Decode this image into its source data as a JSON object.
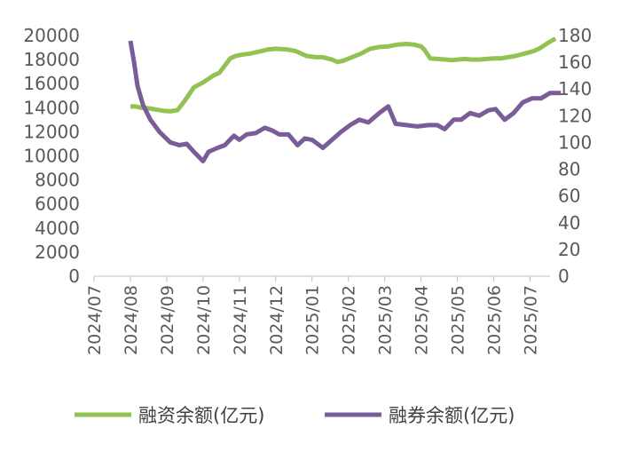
{
  "chart_data": {
    "type": "line",
    "title": "",
    "xlabel": "",
    "ylabel_left": "",
    "ylabel_right": "",
    "y_left": {
      "min": 0,
      "max": 20000,
      "step": 2000,
      "ticks": [
        "0",
        "2000",
        "4000",
        "6000",
        "8000",
        "10000",
        "12000",
        "14000",
        "16000",
        "18000",
        "20000"
      ]
    },
    "y_right": {
      "min": 0,
      "max": 180,
      "step": 20,
      "ticks": [
        "0",
        "20",
        "40",
        "60",
        "80",
        "100",
        "120",
        "140",
        "160",
        "180"
      ]
    },
    "x_ticks": [
      "2024/07",
      "2024/08",
      "2024/09",
      "2024/10",
      "2024/11",
      "2024/12",
      "2025/01",
      "2025/02",
      "2025/03",
      "2025/04",
      "2025/05",
      "2025/06",
      "2025/07"
    ],
    "grid": false,
    "legend_position": "bottom",
    "series": [
      {
        "name": "融资余额(亿元)",
        "axis": "left",
        "color": "#92c352",
        "points": [
          [
            1.0,
            14100
          ],
          [
            1.15,
            14100
          ],
          [
            1.3,
            14000
          ],
          [
            1.5,
            13950
          ],
          [
            1.7,
            13850
          ],
          [
            1.9,
            13750
          ],
          [
            2.1,
            13700
          ],
          [
            2.3,
            13800
          ],
          [
            2.5,
            14600
          ],
          [
            2.75,
            15700
          ],
          [
            3.0,
            16100
          ],
          [
            3.3,
            16700
          ],
          [
            3.45,
            16900
          ],
          [
            3.6,
            17500
          ],
          [
            3.75,
            18100
          ],
          [
            3.9,
            18300
          ],
          [
            4.05,
            18400
          ],
          [
            4.3,
            18500
          ],
          [
            4.6,
            18700
          ],
          [
            4.8,
            18850
          ],
          [
            5.0,
            18900
          ],
          [
            5.3,
            18850
          ],
          [
            5.55,
            18700
          ],
          [
            5.85,
            18300
          ],
          [
            6.1,
            18200
          ],
          [
            6.3,
            18200
          ],
          [
            6.55,
            18000
          ],
          [
            6.7,
            17800
          ],
          [
            6.85,
            17900
          ],
          [
            7.1,
            18200
          ],
          [
            7.35,
            18500
          ],
          [
            7.6,
            18900
          ],
          [
            7.85,
            19050
          ],
          [
            8.1,
            19100
          ],
          [
            8.35,
            19250
          ],
          [
            8.6,
            19300
          ],
          [
            8.8,
            19250
          ],
          [
            9.0,
            19100
          ],
          [
            9.1,
            18800
          ],
          [
            9.25,
            18100
          ],
          [
            9.45,
            18050
          ],
          [
            9.7,
            18000
          ],
          [
            9.85,
            17950
          ],
          [
            10.0,
            18000
          ],
          [
            10.2,
            18050
          ],
          [
            10.4,
            18000
          ],
          [
            10.6,
            18000
          ],
          [
            10.8,
            18050
          ],
          [
            11.0,
            18100
          ],
          [
            11.2,
            18100
          ],
          [
            11.4,
            18200
          ],
          [
            11.6,
            18300
          ],
          [
            11.85,
            18500
          ],
          [
            12.1,
            18700
          ],
          [
            12.3,
            19000
          ],
          [
            12.5,
            19400
          ],
          [
            12.7,
            19750
          ]
        ]
      },
      {
        "name": "融券余额(亿元)",
        "axis": "right",
        "color": "#7a5c99",
        "points": [
          [
            1.0,
            176
          ],
          [
            1.1,
            160
          ],
          [
            1.2,
            142
          ],
          [
            1.35,
            128
          ],
          [
            1.55,
            117
          ],
          [
            1.8,
            108
          ],
          [
            2.1,
            100
          ],
          [
            2.35,
            98
          ],
          [
            2.55,
            99
          ],
          [
            2.75,
            93
          ],
          [
            3.0,
            86
          ],
          [
            3.15,
            93
          ],
          [
            3.4,
            96
          ],
          [
            3.6,
            98
          ],
          [
            3.85,
            105
          ],
          [
            4.0,
            102
          ],
          [
            4.2,
            106
          ],
          [
            4.45,
            107
          ],
          [
            4.7,
            111
          ],
          [
            4.9,
            109
          ],
          [
            5.1,
            106
          ],
          [
            5.35,
            106
          ],
          [
            5.6,
            98
          ],
          [
            5.8,
            103
          ],
          [
            6.0,
            102
          ],
          [
            6.3,
            96
          ],
          [
            6.55,
            102
          ],
          [
            6.8,
            108
          ],
          [
            7.05,
            113
          ],
          [
            7.3,
            117
          ],
          [
            7.55,
            115
          ],
          [
            7.85,
            122
          ],
          [
            8.1,
            127
          ],
          [
            8.3,
            114
          ],
          [
            8.6,
            113
          ],
          [
            8.9,
            112
          ],
          [
            9.2,
            113
          ],
          [
            9.45,
            113
          ],
          [
            9.65,
            110
          ],
          [
            9.9,
            117
          ],
          [
            10.1,
            117
          ],
          [
            10.35,
            122
          ],
          [
            10.6,
            120
          ],
          [
            10.85,
            124
          ],
          [
            11.05,
            125
          ],
          [
            11.3,
            117
          ],
          [
            11.55,
            122
          ],
          [
            11.8,
            130
          ],
          [
            12.05,
            133
          ],
          [
            12.3,
            133
          ],
          [
            12.55,
            137
          ],
          [
            12.85,
            137
          ]
        ]
      }
    ]
  }
}
